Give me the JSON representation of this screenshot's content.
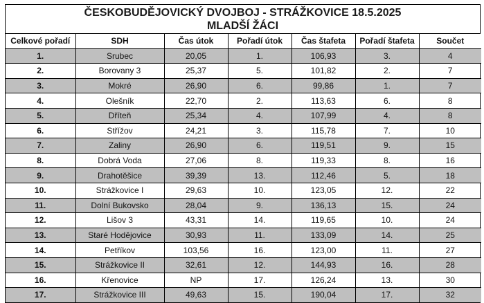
{
  "title": {
    "line1": "ČESKOBUDĚJOVICKÝ DVOJBOJ - STRÁŽKOVICE 18.5.2025",
    "line2": "MLADŠÍ ŽÁCI"
  },
  "table": {
    "headers": [
      "Celkové pořadí",
      "SDH",
      "Čas útok",
      "Pořadí útok",
      "Čas štafeta",
      "Pořadí štafeta",
      "Součet"
    ],
    "rows": [
      [
        "1.",
        "Srubec",
        "20,05",
        "1.",
        "106,93",
        "3.",
        "4"
      ],
      [
        "2.",
        "Borovany 3",
        "25,37",
        "5.",
        "101,82",
        "2.",
        "7"
      ],
      [
        "3.",
        "Mokré",
        "26,90",
        "6.",
        "99,86",
        "1.",
        "7"
      ],
      [
        "4.",
        "Olešník",
        "22,70",
        "2.",
        "113,63",
        "6.",
        "8"
      ],
      [
        "5.",
        "Dříteň",
        "25,34",
        "4.",
        "107,99",
        "4.",
        "8"
      ],
      [
        "6.",
        "Střížov",
        "24,21",
        "3.",
        "115,78",
        "7.",
        "10"
      ],
      [
        "7.",
        "Zaliny",
        "26,90",
        "6.",
        "119,51",
        "9.",
        "15"
      ],
      [
        "8.",
        "Dobrá Voda",
        "27,06",
        "8.",
        "119,33",
        "8.",
        "16"
      ],
      [
        "9.",
        "Drahotěšice",
        "39,39",
        "13.",
        "112,46",
        "5.",
        "18"
      ],
      [
        "10.",
        "Strážkovice I",
        "29,63",
        "10.",
        "123,05",
        "12.",
        "22"
      ],
      [
        "11.",
        "Dolní Bukovsko",
        "28,04",
        "9.",
        "136,13",
        "15.",
        "24"
      ],
      [
        "12.",
        "Lišov 3",
        "43,31",
        "14.",
        "119,65",
        "10.",
        "24"
      ],
      [
        "13.",
        "Staré Hodějovice",
        "30,93",
        "11.",
        "133,09",
        "14.",
        "25"
      ],
      [
        "14.",
        "Petříkov",
        "103,56",
        "16.",
        "123,00",
        "11.",
        "27"
      ],
      [
        "15.",
        "Strážkovice II",
        "32,61",
        "12.",
        "144,93",
        "16.",
        "28"
      ],
      [
        "16.",
        "Křenovice",
        "NP",
        "17.",
        "126,24",
        "13.",
        "30"
      ],
      [
        "17.",
        "Strážkovice III",
        "49,63",
        "15.",
        "190,04",
        "17.",
        "32"
      ]
    ]
  }
}
